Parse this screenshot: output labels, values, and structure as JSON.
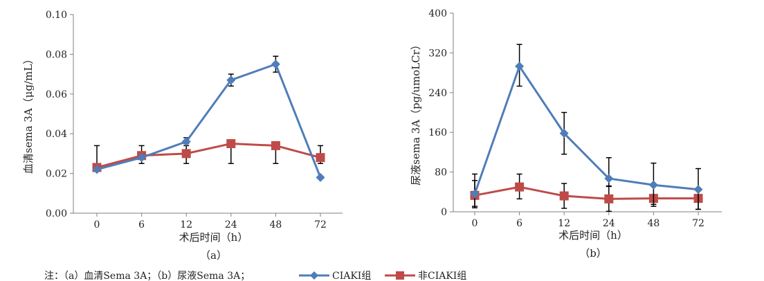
{
  "colors": {
    "blue": "#4F7DB8",
    "red": "#BE4B48",
    "axis": "#7F7F7F",
    "errorbar": "#000000"
  },
  "legend": {
    "note_prefix": "注：（a）血清Sema 3A；（b）尿液Sema 3A；",
    "blue_marker": "diamond",
    "red_marker": "square"
  },
  "chart_data": [
    {
      "type": "line",
      "panel_label": "（a）",
      "xlabel": "术后时间（h）",
      "ylabel": "血清sema 3A（μg/mL）",
      "categories": [
        "0",
        "6",
        "12",
        "24",
        "48",
        "72"
      ],
      "ylim": [
        0,
        0.1
      ],
      "yticks": [
        "0.00",
        "0.02",
        "0.04",
        "0.06",
        "0.08",
        "0.10"
      ],
      "grid": false,
      "series": [
        {
          "name": "CIAKI组",
          "color": "#4F7DB8",
          "marker": "diamond",
          "values": [
            0.022,
            0.028,
            0.036,
            0.067,
            0.075,
            0.018
          ],
          "err_low": [
            0,
            0,
            0.002,
            0.003,
            0.004,
            0
          ],
          "err_high": [
            0,
            0,
            0.002,
            0.003,
            0.004,
            0
          ]
        },
        {
          "name": "非CIAKI组",
          "color": "#BE4B48",
          "marker": "square",
          "values": [
            0.023,
            0.029,
            0.03,
            0.035,
            0.034,
            0.028
          ],
          "err_low": [
            0,
            0.004,
            0.005,
            0.01,
            0.009,
            0.003
          ],
          "err_high": [
            0.011,
            0.005,
            0.005,
            0,
            0,
            0.006
          ]
        }
      ]
    },
    {
      "type": "line",
      "panel_label": "（b）",
      "xlabel": "术后时间（h）",
      "ylabel": "尿液sema 3A（pg/umoLCr）",
      "categories": [
        "0",
        "6",
        "12",
        "24",
        "48",
        "72"
      ],
      "ylim": [
        0,
        400
      ],
      "yticks": [
        "0",
        "80",
        "160",
        "240",
        "320",
        "400"
      ],
      "grid": false,
      "series": [
        {
          "name": "CIAKI组",
          "color": "#4F7DB8",
          "marker": "diamond",
          "values": [
            36,
            293,
            158,
            67,
            54,
            45
          ],
          "err_low": [
            28,
            40,
            42,
            15,
            39,
            40
          ],
          "err_high": [
            40,
            44,
            42,
            42,
            44,
            42
          ]
        },
        {
          "name": "非CIAKI组",
          "color": "#BE4B48",
          "marker": "square",
          "values": [
            33,
            50,
            32,
            26,
            27,
            27
          ],
          "err_low": [
            22,
            24,
            25,
            25,
            16,
            22
          ],
          "err_high": [
            30,
            26,
            25,
            25,
            0,
            0
          ]
        }
      ]
    }
  ]
}
